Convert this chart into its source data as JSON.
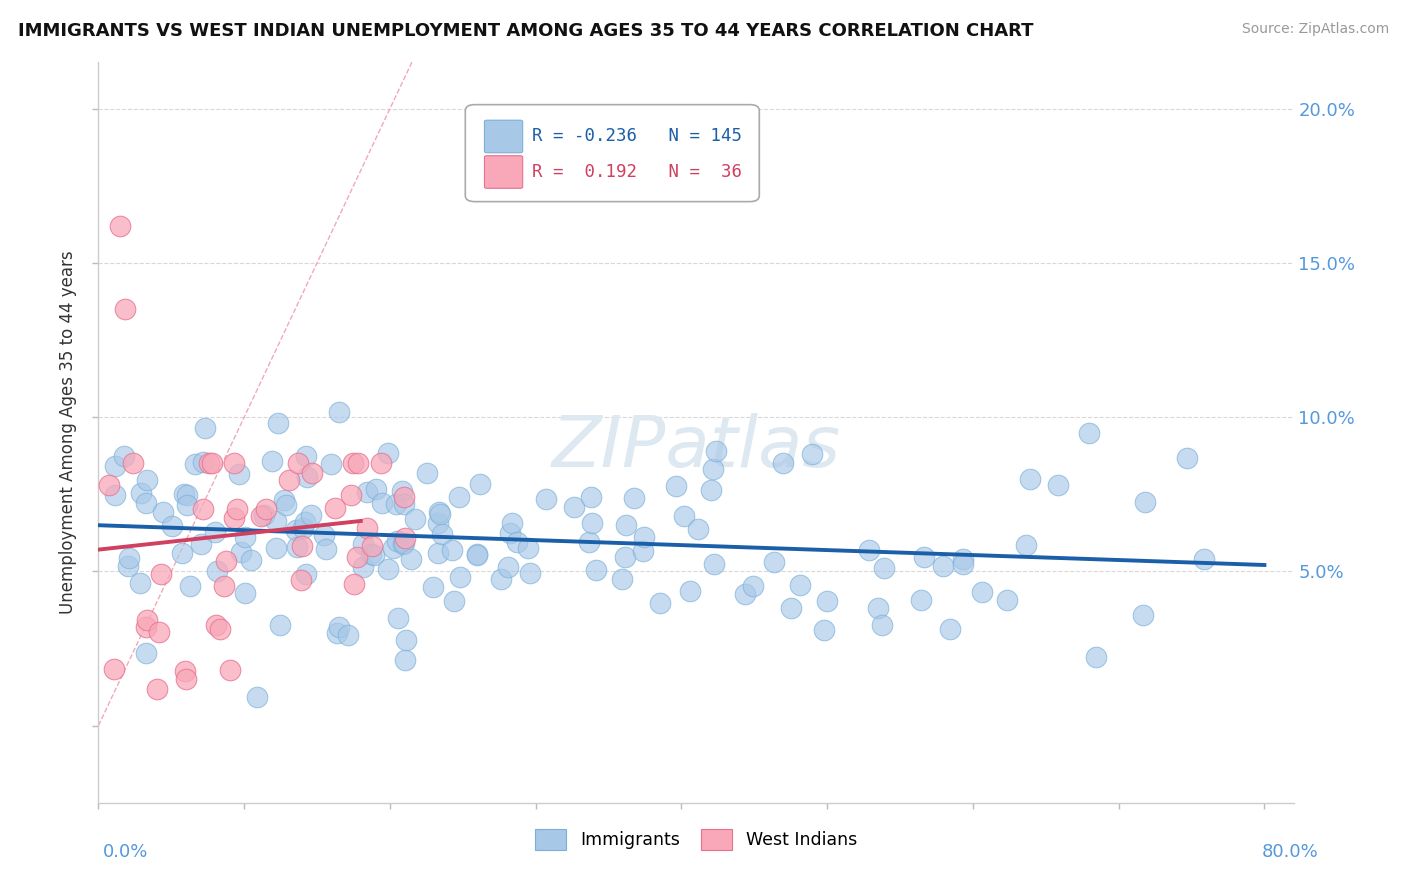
{
  "title": "IMMIGRANTS VS WEST INDIAN UNEMPLOYMENT AMONG AGES 35 TO 44 YEARS CORRELATION CHART",
  "source": "Source: ZipAtlas.com",
  "ylabel": "Unemployment Among Ages 35 to 44 years",
  "xlim": [
    0.0,
    0.82
  ],
  "ylim": [
    -0.025,
    0.215
  ],
  "yticks": [
    0.0,
    0.05,
    0.1,
    0.15,
    0.2
  ],
  "ytick_labels": [
    "",
    "5.0%",
    "10.0%",
    "15.0%",
    "20.0%"
  ],
  "xticks": [
    0.0,
    0.1,
    0.2,
    0.3,
    0.4,
    0.5,
    0.6,
    0.7,
    0.8
  ],
  "blue_color": "#a8c8e8",
  "blue_edge_color": "#7ab0d8",
  "blue_line_color": "#1a5fa8",
  "pink_color": "#f8a8b8",
  "pink_edge_color": "#e87090",
  "pink_line_color": "#d04060",
  "diag_line_color": "#f0a0b0",
  "grid_color": "#d8d8d8",
  "watermark_color": "#dde8f0",
  "bg_color": "#ffffff",
  "label_color": "#5599dd",
  "title_color": "#111111",
  "source_color": "#999999",
  "ylabel_color": "#333333",
  "imm_r": -0.236,
  "imm_n": 145,
  "wi_r": 0.192,
  "wi_n": 36
}
